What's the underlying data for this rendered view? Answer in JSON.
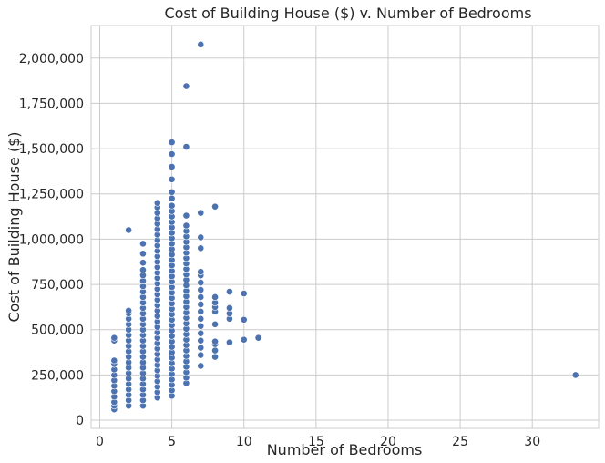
{
  "chart_data": {
    "type": "scatter",
    "title": "Cost of Building House ($) v. Number of Bedrooms",
    "xlabel": "Number of Bedrooms",
    "ylabel": "Cost of Building House ($)",
    "xlim": [
      -0.6,
      34.6
    ],
    "ylim": [
      -45000,
      2180000
    ],
    "xticks": [
      0,
      5,
      10,
      15,
      20,
      25,
      30
    ],
    "xtick_labels": [
      "0",
      "5",
      "10",
      "15",
      "20",
      "25",
      "30"
    ],
    "yticks": [
      0,
      250000,
      500000,
      750000,
      1000000,
      1250000,
      1500000,
      1750000,
      2000000
    ],
    "ytick_labels": [
      "0",
      "250,000",
      "500,000",
      "750,000",
      "1,000,000",
      "1,250,000",
      "1,500,000",
      "1,750,000",
      "2,000,000"
    ],
    "grid": true,
    "marker_color": "#4c72b0",
    "series": [
      {
        "points": [
          [
            1,
            60000
          ],
          [
            1,
            80000
          ],
          [
            1,
            100000
          ],
          [
            1,
            130000
          ],
          [
            1,
            160000
          ],
          [
            1,
            190000
          ],
          [
            1,
            220000
          ],
          [
            1,
            250000
          ],
          [
            1,
            280000
          ],
          [
            1,
            310000
          ],
          [
            1,
            330000
          ],
          [
            1,
            440000
          ],
          [
            1,
            455000
          ],
          [
            2,
            80000
          ],
          [
            2,
            110000
          ],
          [
            2,
            140000
          ],
          [
            2,
            170000
          ],
          [
            2,
            200000
          ],
          [
            2,
            230000
          ],
          [
            2,
            260000
          ],
          [
            2,
            290000
          ],
          [
            2,
            320000
          ],
          [
            2,
            350000
          ],
          [
            2,
            380000
          ],
          [
            2,
            410000
          ],
          [
            2,
            440000
          ],
          [
            2,
            470000
          ],
          [
            2,
            500000
          ],
          [
            2,
            530000
          ],
          [
            2,
            560000
          ],
          [
            2,
            590000
          ],
          [
            2,
            605000
          ],
          [
            2,
            1050000
          ],
          [
            3,
            80000
          ],
          [
            3,
            110000
          ],
          [
            3,
            140000
          ],
          [
            3,
            170000
          ],
          [
            3,
            200000
          ],
          [
            3,
            230000
          ],
          [
            3,
            260000
          ],
          [
            3,
            290000
          ],
          [
            3,
            320000
          ],
          [
            3,
            350000
          ],
          [
            3,
            380000
          ],
          [
            3,
            410000
          ],
          [
            3,
            440000
          ],
          [
            3,
            470000
          ],
          [
            3,
            500000
          ],
          [
            3,
            530000
          ],
          [
            3,
            560000
          ],
          [
            3,
            590000
          ],
          [
            3,
            620000
          ],
          [
            3,
            650000
          ],
          [
            3,
            680000
          ],
          [
            3,
            710000
          ],
          [
            3,
            740000
          ],
          [
            3,
            770000
          ],
          [
            3,
            800000
          ],
          [
            3,
            830000
          ],
          [
            3,
            870000
          ],
          [
            3,
            920000
          ],
          [
            3,
            975000
          ],
          [
            4,
            125000
          ],
          [
            4,
            155000
          ],
          [
            4,
            185000
          ],
          [
            4,
            215000
          ],
          [
            4,
            245000
          ],
          [
            4,
            275000
          ],
          [
            4,
            305000
          ],
          [
            4,
            335000
          ],
          [
            4,
            365000
          ],
          [
            4,
            395000
          ],
          [
            4,
            425000
          ],
          [
            4,
            455000
          ],
          [
            4,
            485000
          ],
          [
            4,
            515000
          ],
          [
            4,
            545000
          ],
          [
            4,
            575000
          ],
          [
            4,
            605000
          ],
          [
            4,
            635000
          ],
          [
            4,
            665000
          ],
          [
            4,
            695000
          ],
          [
            4,
            725000
          ],
          [
            4,
            755000
          ],
          [
            4,
            785000
          ],
          [
            4,
            815000
          ],
          [
            4,
            845000
          ],
          [
            4,
            875000
          ],
          [
            4,
            905000
          ],
          [
            4,
            935000
          ],
          [
            4,
            965000
          ],
          [
            4,
            995000
          ],
          [
            4,
            1025000
          ],
          [
            4,
            1055000
          ],
          [
            4,
            1085000
          ],
          [
            4,
            1115000
          ],
          [
            4,
            1145000
          ],
          [
            4,
            1175000
          ],
          [
            4,
            1200000
          ],
          [
            5,
            135000
          ],
          [
            5,
            165000
          ],
          [
            5,
            195000
          ],
          [
            5,
            225000
          ],
          [
            5,
            255000
          ],
          [
            5,
            285000
          ],
          [
            5,
            315000
          ],
          [
            5,
            345000
          ],
          [
            5,
            375000
          ],
          [
            5,
            405000
          ],
          [
            5,
            435000
          ],
          [
            5,
            465000
          ],
          [
            5,
            495000
          ],
          [
            5,
            525000
          ],
          [
            5,
            555000
          ],
          [
            5,
            585000
          ],
          [
            5,
            615000
          ],
          [
            5,
            645000
          ],
          [
            5,
            675000
          ],
          [
            5,
            705000
          ],
          [
            5,
            735000
          ],
          [
            5,
            765000
          ],
          [
            5,
            795000
          ],
          [
            5,
            825000
          ],
          [
            5,
            855000
          ],
          [
            5,
            885000
          ],
          [
            5,
            915000
          ],
          [
            5,
            945000
          ],
          [
            5,
            975000
          ],
          [
            5,
            1005000
          ],
          [
            5,
            1035000
          ],
          [
            5,
            1065000
          ],
          [
            5,
            1095000
          ],
          [
            5,
            1125000
          ],
          [
            5,
            1155000
          ],
          [
            5,
            1185000
          ],
          [
            5,
            1225000
          ],
          [
            5,
            1260000
          ],
          [
            5,
            1330000
          ],
          [
            5,
            1400000
          ],
          [
            5,
            1470000
          ],
          [
            5,
            1535000
          ],
          [
            6,
            205000
          ],
          [
            6,
            235000
          ],
          [
            6,
            265000
          ],
          [
            6,
            295000
          ],
          [
            6,
            325000
          ],
          [
            6,
            355000
          ],
          [
            6,
            385000
          ],
          [
            6,
            415000
          ],
          [
            6,
            445000
          ],
          [
            6,
            475000
          ],
          [
            6,
            505000
          ],
          [
            6,
            535000
          ],
          [
            6,
            565000
          ],
          [
            6,
            595000
          ],
          [
            6,
            625000
          ],
          [
            6,
            655000
          ],
          [
            6,
            685000
          ],
          [
            6,
            715000
          ],
          [
            6,
            745000
          ],
          [
            6,
            775000
          ],
          [
            6,
            805000
          ],
          [
            6,
            835000
          ],
          [
            6,
            865000
          ],
          [
            6,
            895000
          ],
          [
            6,
            925000
          ],
          [
            6,
            955000
          ],
          [
            6,
            985000
          ],
          [
            6,
            1015000
          ],
          [
            6,
            1045000
          ],
          [
            6,
            1075000
          ],
          [
            6,
            1130000
          ],
          [
            6,
            1510000
          ],
          [
            6,
            1845000
          ],
          [
            7,
            300000
          ],
          [
            7,
            360000
          ],
          [
            7,
            400000
          ],
          [
            7,
            440000
          ],
          [
            7,
            480000
          ],
          [
            7,
            520000
          ],
          [
            7,
            560000
          ],
          [
            7,
            600000
          ],
          [
            7,
            640000
          ],
          [
            7,
            680000
          ],
          [
            7,
            720000
          ],
          [
            7,
            760000
          ],
          [
            7,
            800000
          ],
          [
            7,
            820000
          ],
          [
            7,
            950000
          ],
          [
            7,
            1010000
          ],
          [
            7,
            1145000
          ],
          [
            7,
            2075000
          ],
          [
            8,
            350000
          ],
          [
            8,
            385000
          ],
          [
            8,
            420000
          ],
          [
            8,
            435000
          ],
          [
            8,
            530000
          ],
          [
            8,
            600000
          ],
          [
            8,
            625000
          ],
          [
            8,
            650000
          ],
          [
            8,
            680000
          ],
          [
            8,
            1180000
          ],
          [
            9,
            430000
          ],
          [
            9,
            560000
          ],
          [
            9,
            590000
          ],
          [
            9,
            620000
          ],
          [
            9,
            710000
          ],
          [
            10,
            445000
          ],
          [
            10,
            555000
          ],
          [
            10,
            700000
          ],
          [
            11,
            455000
          ],
          [
            33,
            250000
          ]
        ]
      }
    ]
  }
}
